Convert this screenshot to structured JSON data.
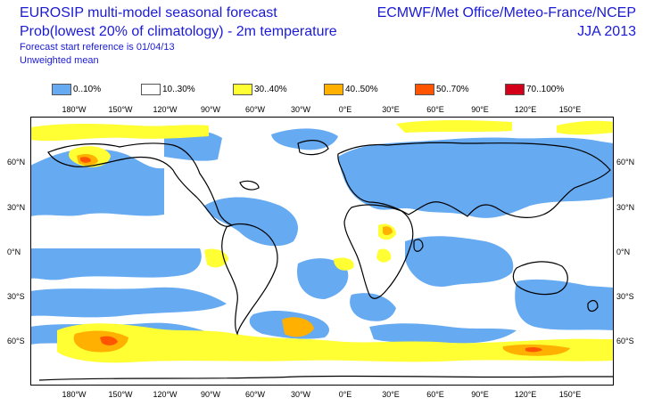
{
  "header": {
    "title_line1": "EUROSIP multi-model seasonal forecast",
    "title_line2": "Prob(lowest 20% of climatology) - 2m temperature",
    "forecast_ref": "Forecast start reference is 01/04/13",
    "mean_type": "Unweighted mean",
    "centres": "ECMWF/Met Office/Meteo-France/NCEP",
    "season": "JJA 2013"
  },
  "legend": [
    {
      "label": "0..10%",
      "color": "#66aaf2"
    },
    {
      "label": "10..30%",
      "color": "#ffffff"
    },
    {
      "label": "30..40%",
      "color": "#ffff33"
    },
    {
      "label": "40..50%",
      "color": "#ffb000"
    },
    {
      "label": "50..70%",
      "color": "#ff5500"
    },
    {
      "label": "70..100%",
      "color": "#d4001a"
    }
  ],
  "axes": {
    "lon_top": [
      "180°W",
      "150°W",
      "120°W",
      "90°W",
      "60°W",
      "30°W",
      "0°E",
      "30°E",
      "60°E",
      "90°E",
      "120°E",
      "150°E"
    ],
    "lon_bottom": [
      "180°W",
      "150°W",
      "120°W",
      "90°W",
      "60°W",
      "30°W",
      "0°E",
      "30°E",
      "60°E",
      "90°E",
      "120°E",
      "150°E"
    ],
    "lat_left": [
      "60°N",
      "30°N",
      "0°N",
      "30°S",
      "60°S"
    ],
    "lat_right": [
      "60°N",
      "30°N",
      "0°N",
      "30°S",
      "60°S"
    ]
  }
}
